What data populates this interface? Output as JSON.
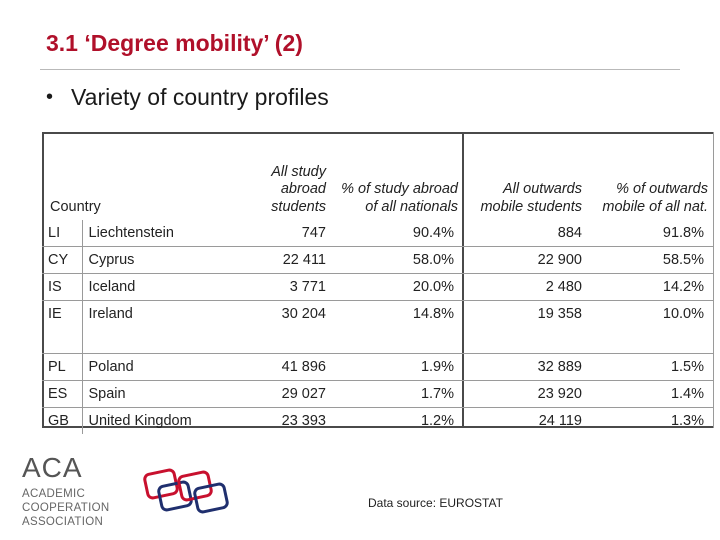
{
  "slide": {
    "title": "3.1 ‘Degree mobility’ (2)",
    "bullet": "Variety of country profiles",
    "source": "Data source: EUROSTAT"
  },
  "table": {
    "headers": {
      "country": "Country",
      "all_abroad": "All study abroad students",
      "pct_abroad": "% of study abroad of all nationals",
      "all_outwards": "All outwards mobile students",
      "pct_outwards": "% of outwards mobile of all nat."
    },
    "rows": [
      {
        "code": "LI",
        "name": "Liechtenstein",
        "abroad": "747",
        "pct_abroad": "90.4%",
        "outwards": "884",
        "pct_outwards": "91.8%"
      },
      {
        "code": "CY",
        "name": "Cyprus",
        "abroad": "22 411",
        "pct_abroad": "58.0%",
        "outwards": "22 900",
        "pct_outwards": "58.5%"
      },
      {
        "code": "IS",
        "name": "Iceland",
        "abroad": "3 771",
        "pct_abroad": "20.0%",
        "outwards": "2 480",
        "pct_outwards": "14.2%"
      },
      {
        "code": "IE",
        "name": "Ireland",
        "abroad": "30 204",
        "pct_abroad": "14.8%",
        "outwards": "19 358",
        "pct_outwards": "10.0%"
      },
      {
        "code": "PL",
        "name": "Poland",
        "abroad": "41 896",
        "pct_abroad": "1.9%",
        "outwards": "32 889",
        "pct_outwards": "1.5%"
      },
      {
        "code": "ES",
        "name": "Spain",
        "abroad": "29 027",
        "pct_abroad": "1.7%",
        "outwards": "23 920",
        "pct_outwards": "1.4%"
      },
      {
        "code": "GB",
        "name": "United Kingdom",
        "abroad": "23 393",
        "pct_abroad": "1.2%",
        "outwards": "24 119",
        "pct_outwards": "1.3%"
      }
    ]
  },
  "logo": {
    "acronym": "ACA",
    "line1": "ACADEMIC",
    "line2": "COOPERATION",
    "line3": "ASSOCIATION"
  },
  "colors": {
    "title": "#b0102a",
    "logo_red": "#c8102e",
    "logo_navy": "#1f2f6e"
  }
}
